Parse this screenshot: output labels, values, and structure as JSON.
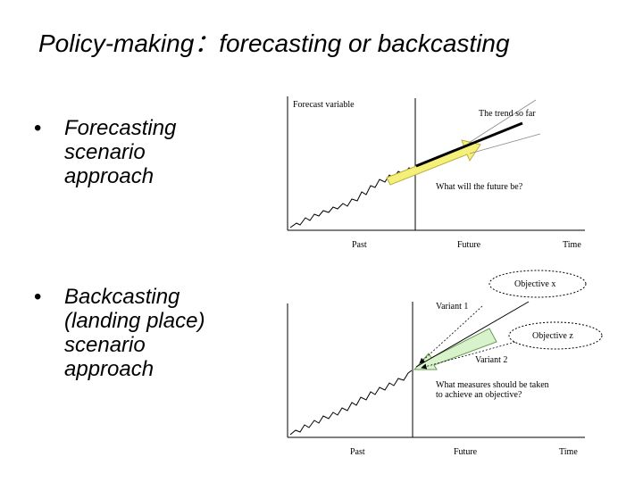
{
  "title": "Policy-making：forecasting or backcasting",
  "bullets": [
    {
      "marker": "•",
      "lines": [
        "Forecasting",
        "scenario",
        "approach"
      ]
    },
    {
      "marker": "•",
      "lines": [
        "Backcasting",
        "(landing place)",
        "scenario",
        "approach"
      ]
    }
  ],
  "forecast_diagram": {
    "y_axis_label": "Forecast variable",
    "trend_label": "The trend so far",
    "question_label": "What will the future be?",
    "x_labels": {
      "past": "Past",
      "future": "Future",
      "time": "Time"
    },
    "arrow_color": "#f5f07a"
  },
  "backcast_diagram": {
    "objective_x": "Objective x",
    "objective_z": "Objective z",
    "variant_1": "Variant 1",
    "variant_2": "Variant 2",
    "question_line_1": "What measures should be taken",
    "question_line_2": "to achieve an objective?",
    "x_labels": {
      "past": "Past",
      "future": "Future",
      "time": "Time"
    },
    "arrow_color": "#d8f2cc"
  }
}
